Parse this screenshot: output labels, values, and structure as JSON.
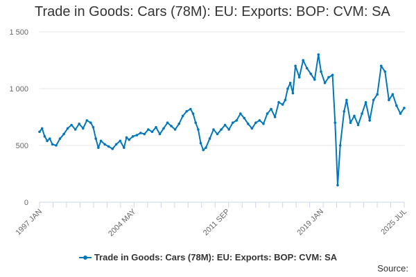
{
  "chart_data": {
    "type": "line",
    "title": "Trade in Goods: Cars (78M): EU: Exports: BOP: CVM: SA",
    "source_label": "Source:",
    "color": "#0077bb",
    "ylim": [
      0,
      1500
    ],
    "yticks": [
      0,
      500,
      1000,
      1500
    ],
    "ytick_labels": [
      "0",
      "500",
      "1 000",
      "1 500"
    ],
    "xrange": [
      1997.0,
      2025.5
    ],
    "xticks": [
      {
        "x": 1997.0,
        "label": "1997 JAN"
      },
      {
        "x": 2004.33,
        "label": "2004 MAY"
      },
      {
        "x": 2011.67,
        "label": "2011 SEP"
      },
      {
        "x": 2019.0,
        "label": "2019 JAN"
      },
      {
        "x": 2025.5,
        "label": "2025 JUL"
      }
    ],
    "series": [
      {
        "name": "Trade in Goods: Cars (78M): EU: Exports: BOP: CVM: SA",
        "points": [
          [
            1997.0,
            620
          ],
          [
            1997.2,
            650
          ],
          [
            1997.4,
            580
          ],
          [
            1997.6,
            540
          ],
          [
            1997.8,
            560
          ],
          [
            1998.0,
            510
          ],
          [
            1998.3,
            500
          ],
          [
            1998.6,
            560
          ],
          [
            1998.9,
            600
          ],
          [
            1999.2,
            650
          ],
          [
            1999.5,
            680
          ],
          [
            1999.8,
            640
          ],
          [
            2000.1,
            690
          ],
          [
            2000.4,
            650
          ],
          [
            2000.7,
            720
          ],
          [
            2001.0,
            700
          ],
          [
            2001.2,
            660
          ],
          [
            2001.4,
            560
          ],
          [
            2001.6,
            480
          ],
          [
            2001.8,
            540
          ],
          [
            2002.1,
            510
          ],
          [
            2002.4,
            490
          ],
          [
            2002.7,
            470
          ],
          [
            2003.0,
            510
          ],
          [
            2003.3,
            540
          ],
          [
            2003.6,
            480
          ],
          [
            2003.8,
            570
          ],
          [
            2004.0,
            550
          ],
          [
            2004.3,
            580
          ],
          [
            2004.6,
            590
          ],
          [
            2004.9,
            610
          ],
          [
            2005.2,
            600
          ],
          [
            2005.5,
            640
          ],
          [
            2005.8,
            620
          ],
          [
            2006.1,
            660
          ],
          [
            2006.4,
            600
          ],
          [
            2006.7,
            650
          ],
          [
            2007.0,
            700
          ],
          [
            2007.3,
            670
          ],
          [
            2007.6,
            640
          ],
          [
            2007.9,
            690
          ],
          [
            2008.2,
            760
          ],
          [
            2008.5,
            800
          ],
          [
            2008.8,
            820
          ],
          [
            2009.0,
            780
          ],
          [
            2009.2,
            700
          ],
          [
            2009.4,
            640
          ],
          [
            2009.6,
            520
          ],
          [
            2009.8,
            460
          ],
          [
            2010.0,
            480
          ],
          [
            2010.3,
            560
          ],
          [
            2010.6,
            640
          ],
          [
            2010.9,
            600
          ],
          [
            2011.2,
            640
          ],
          [
            2011.5,
            680
          ],
          [
            2011.8,
            640
          ],
          [
            2012.1,
            700
          ],
          [
            2012.4,
            720
          ],
          [
            2012.7,
            780
          ],
          [
            2013.0,
            740
          ],
          [
            2013.3,
            690
          ],
          [
            2013.6,
            650
          ],
          [
            2013.9,
            700
          ],
          [
            2014.2,
            720
          ],
          [
            2014.5,
            690
          ],
          [
            2014.8,
            780
          ],
          [
            2015.1,
            820
          ],
          [
            2015.4,
            750
          ],
          [
            2015.7,
            880
          ],
          [
            2016.0,
            860
          ],
          [
            2016.2,
            900
          ],
          [
            2016.4,
            1000
          ],
          [
            2016.6,
            1050
          ],
          [
            2016.8,
            960
          ],
          [
            2017.0,
            1200
          ],
          [
            2017.3,
            1100
          ],
          [
            2017.6,
            1250
          ],
          [
            2017.9,
            1180
          ],
          [
            2018.2,
            1130
          ],
          [
            2018.5,
            1080
          ],
          [
            2018.8,
            1300
          ],
          [
            2019.0,
            1150
          ],
          [
            2019.3,
            1050
          ],
          [
            2019.6,
            1100
          ],
          [
            2019.9,
            1120
          ],
          [
            2020.1,
            700
          ],
          [
            2020.3,
            150
          ],
          [
            2020.5,
            500
          ],
          [
            2020.8,
            800
          ],
          [
            2021.0,
            900
          ],
          [
            2021.3,
            700
          ],
          [
            2021.6,
            760
          ],
          [
            2021.9,
            680
          ],
          [
            2022.2,
            780
          ],
          [
            2022.5,
            880
          ],
          [
            2022.8,
            720
          ],
          [
            2023.1,
            900
          ],
          [
            2023.4,
            950
          ],
          [
            2023.7,
            1200
          ],
          [
            2024.0,
            1150
          ],
          [
            2024.3,
            900
          ],
          [
            2024.6,
            950
          ],
          [
            2024.9,
            850
          ],
          [
            2025.2,
            780
          ],
          [
            2025.5,
            830
          ]
        ]
      }
    ]
  }
}
